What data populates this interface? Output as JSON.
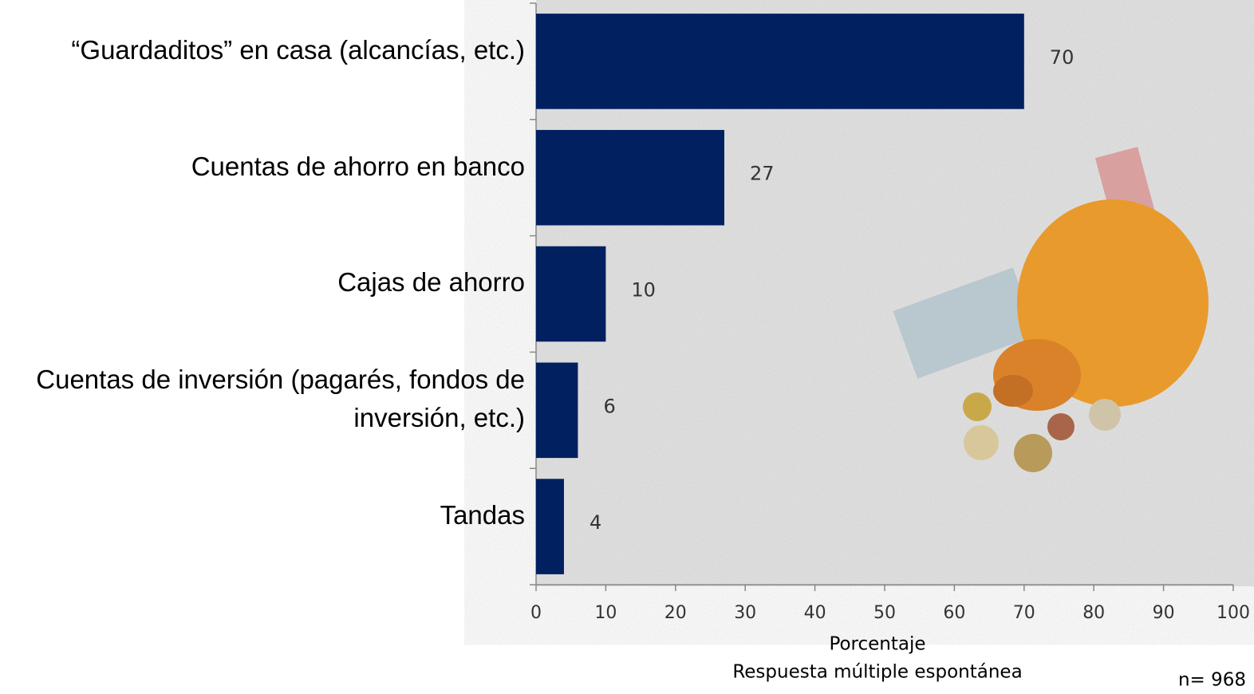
{
  "chart_data": {
    "type": "barh",
    "categories": [
      "“Guardaditos” en casa (alcancías, etc.)",
      "Cuentas de ahorro en banco",
      "Cajas de ahorro",
      "Cuentas de inversión (pagarés, fondos de inversión, etc.)",
      "Tandas"
    ],
    "values": [
      70,
      27,
      10,
      6,
      4
    ],
    "color": "#002060",
    "xlim": [
      0,
      100
    ],
    "xticks": [
      0,
      10,
      20,
      30,
      40,
      50,
      60,
      70,
      80,
      90,
      100
    ],
    "xlabel": "Porcentaje",
    "note": "Respuesta múltiple espontánea",
    "sample": "n= 968"
  }
}
